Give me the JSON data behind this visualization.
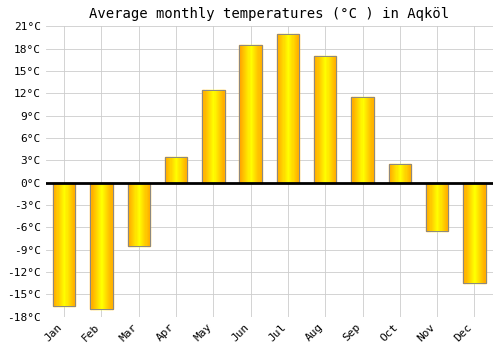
{
  "title": "Average monthly temperatures (°C ) in Aqköl",
  "months": [
    "Jan",
    "Feb",
    "Mar",
    "Apr",
    "May",
    "Jun",
    "Jul",
    "Aug",
    "Sep",
    "Oct",
    "Nov",
    "Dec"
  ],
  "values": [
    -16.5,
    -17.0,
    -8.5,
    3.5,
    12.5,
    18.5,
    20.0,
    17.0,
    11.5,
    2.5,
    -6.5,
    -13.5
  ],
  "bar_color_top": "#FFD700",
  "bar_color_bottom": "#FFA500",
  "bar_edge_color": "#888888",
  "background_color": "#FFFFFF",
  "plot_bg_color": "#FFFFFF",
  "ylim": [
    -18,
    21
  ],
  "yticks": [
    -18,
    -15,
    -12,
    -9,
    -6,
    -3,
    0,
    3,
    6,
    9,
    12,
    15,
    18,
    21
  ],
  "grid_color": "#CCCCCC",
  "title_fontsize": 10,
  "tick_fontsize": 8,
  "font_family": "monospace",
  "bar_width": 0.6
}
